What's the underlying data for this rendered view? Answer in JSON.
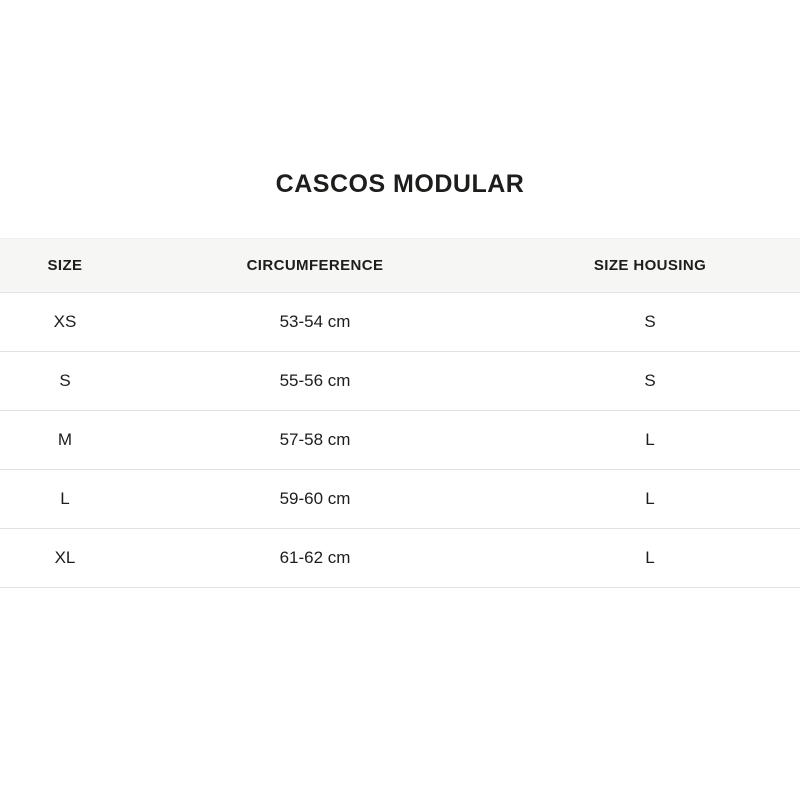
{
  "colors": {
    "page_background": "#ffffff",
    "header_background": "#f6f6f5",
    "row_divider": "#e2e2e2",
    "text": "#1d1d1b"
  },
  "chart_data": {
    "type": "table",
    "title": "CASCOS MODULAR",
    "columns": [
      "SIZE",
      "CIRCUMFERENCE",
      "SIZE HOUSING"
    ],
    "rows": [
      [
        "XS",
        "53-54 cm",
        "S"
      ],
      [
        "S",
        "55-56 cm",
        "S"
      ],
      [
        "M",
        "57-58 cm",
        "L"
      ],
      [
        "L",
        "59-60 cm",
        "L"
      ],
      [
        "XL",
        "61-62 cm",
        "L"
      ]
    ]
  }
}
